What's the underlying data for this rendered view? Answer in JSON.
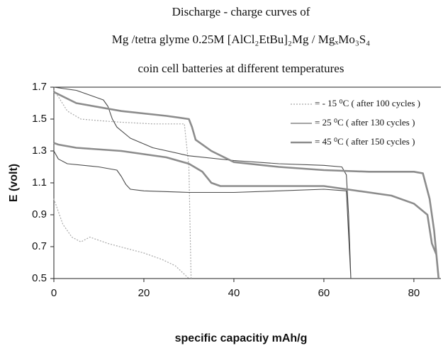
{
  "chart_data": {
    "type": "line",
    "title": [
      "Discharge - charge curves of",
      "Mg /tetra glyme 0.25M [AlCl₂EtBu]₂Mg / MgₓMo₃S₄",
      "coin cell batteries at different temperatures"
    ],
    "x_label": "specific capacitiy mAh/g",
    "y_label": "E (volt)",
    "xlim": [
      0,
      86
    ],
    "xticks": [
      0,
      20,
      40,
      60,
      80
    ],
    "ylim": [
      0.5,
      1.7
    ],
    "yticks": [
      0.5,
      0.7,
      0.9,
      1.1,
      1.3,
      1.5,
      1.7
    ],
    "series": [
      {
        "name": "= - 15 ⁰C ( after 100 cycles )",
        "color": "#a8a8a8",
        "line_style": "dotted",
        "line_width": 1.2,
        "x": [
          0,
          1,
          3,
          6,
          10,
          15,
          22,
          29,
          30,
          30.5,
          null,
          0,
          1,
          2,
          4,
          6,
          8,
          9,
          12,
          16,
          20,
          24,
          27,
          30
        ],
        "values": [
          1.68,
          1.64,
          1.55,
          1.5,
          1.49,
          1.48,
          1.47,
          1.47,
          1.2,
          0.5,
          null,
          1.0,
          0.92,
          0.84,
          0.76,
          0.73,
          0.76,
          0.75,
          0.72,
          0.69,
          0.66,
          0.62,
          0.58,
          0.5
        ]
      },
      {
        "name": "= 25 ⁰C ( after 130 cycles )",
        "color": "#4a4a4a",
        "line_style": "solid",
        "line_width": 1.1,
        "x": [
          0,
          5,
          11,
          12,
          13,
          14,
          17,
          22,
          30,
          40,
          50,
          60,
          64,
          65,
          65.5,
          66,
          null,
          0,
          1,
          3,
          10,
          14,
          15,
          16,
          17,
          20,
          30,
          40,
          50,
          60,
          65,
          66
        ],
        "values": [
          1.7,
          1.68,
          1.62,
          1.58,
          1.5,
          1.45,
          1.38,
          1.32,
          1.27,
          1.24,
          1.22,
          1.21,
          1.2,
          1.15,
          0.9,
          0.5,
          null,
          1.3,
          1.25,
          1.22,
          1.2,
          1.18,
          1.14,
          1.09,
          1.06,
          1.05,
          1.04,
          1.04,
          1.05,
          1.06,
          1.05,
          0.5
        ]
      },
      {
        "name": "= 45 ⁰C ( after 150 cycles )",
        "color": "#8c8c8c",
        "line_style": "solid",
        "line_width": 2.6,
        "x": [
          0,
          5,
          15,
          25,
          30,
          30.7,
          31.5,
          35,
          40,
          50,
          60,
          70,
          80,
          82,
          83.5,
          84.5,
          85.5,
          null,
          0,
          1,
          5,
          15,
          25,
          30,
          33,
          35,
          37,
          50,
          60,
          65,
          75,
          80,
          83,
          84,
          85,
          85.5
        ],
        "values": [
          1.67,
          1.6,
          1.55,
          1.52,
          1.5,
          1.45,
          1.37,
          1.3,
          1.23,
          1.2,
          1.18,
          1.17,
          1.17,
          1.16,
          1.0,
          0.8,
          0.5,
          null,
          1.35,
          1.34,
          1.32,
          1.3,
          1.26,
          1.22,
          1.17,
          1.1,
          1.08,
          1.08,
          1.08,
          1.06,
          1.02,
          0.97,
          0.9,
          0.72,
          0.65,
          0.5
        ]
      }
    ]
  }
}
